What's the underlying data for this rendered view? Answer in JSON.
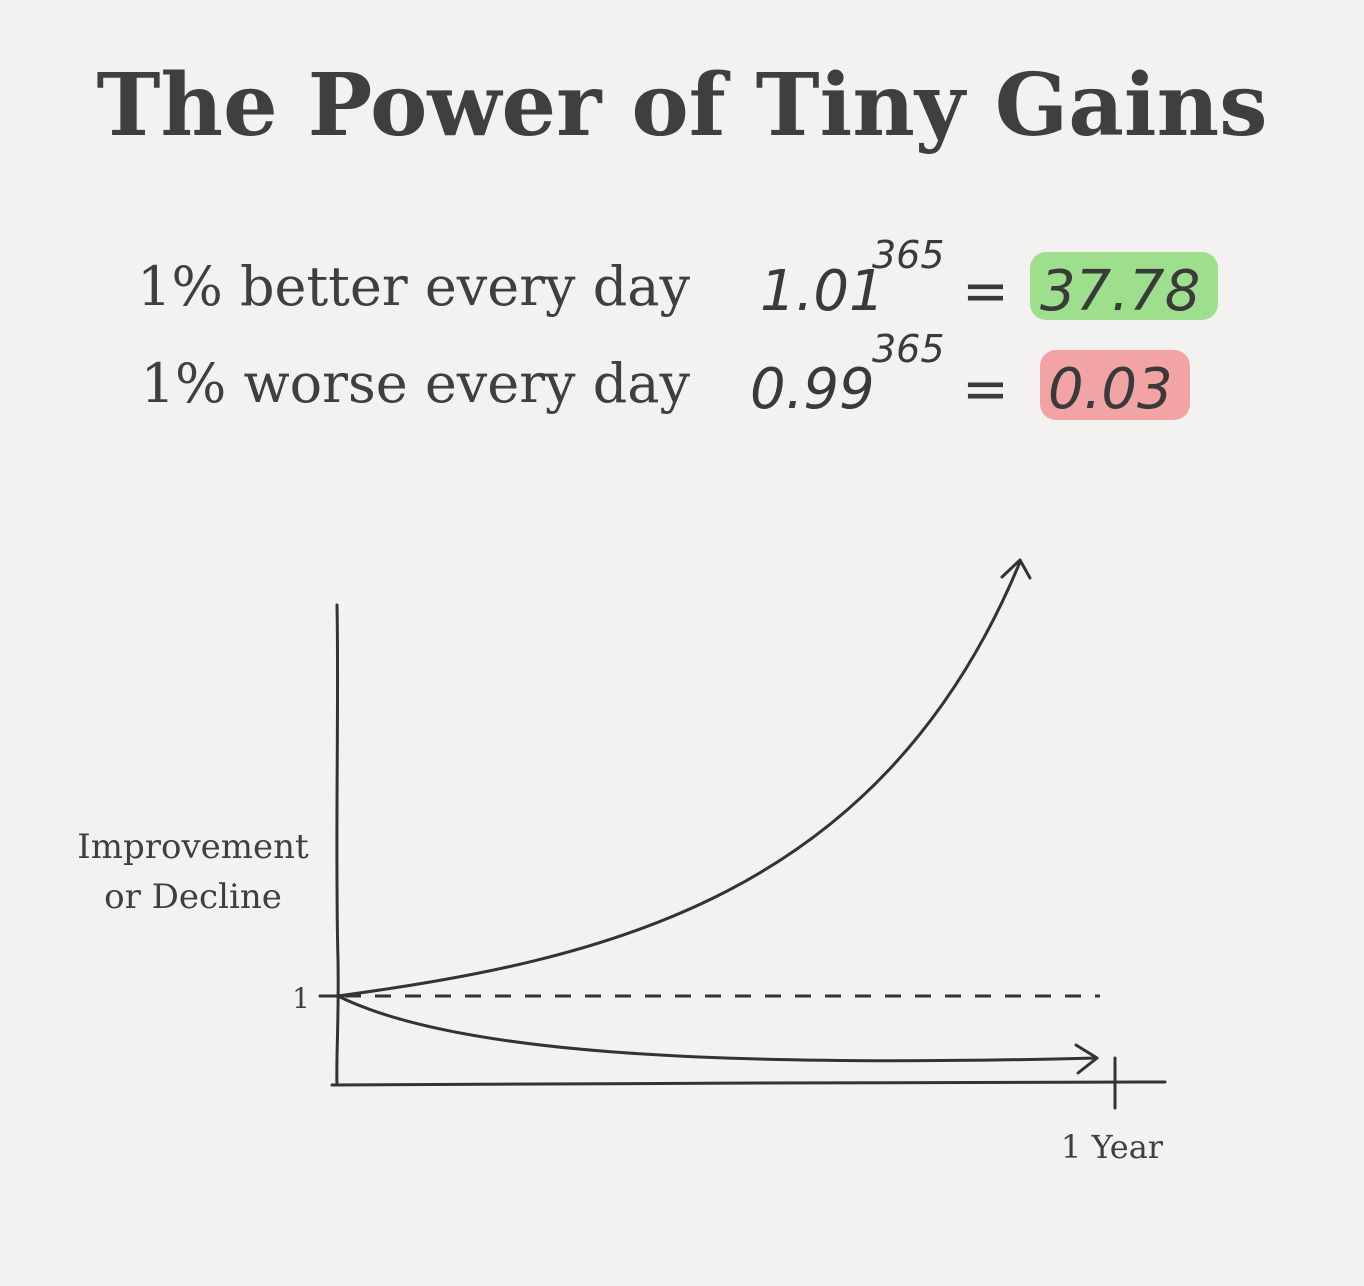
{
  "title": "The Power of Tiny Gains",
  "equations": [
    {
      "label": "1% better every day",
      "base": "1.01",
      "exponent": "365",
      "equals": "=",
      "result": "37.78"
    },
    {
      "label": "1% worse every day",
      "base": "0.99",
      "exponent": "365",
      "equals": "=",
      "result": "0.03"
    }
  ],
  "graph": {
    "y_label": [
      "Improvement",
      "or Decline"
    ],
    "y_tick": "1",
    "x_tick": "1 Year"
  }
}
